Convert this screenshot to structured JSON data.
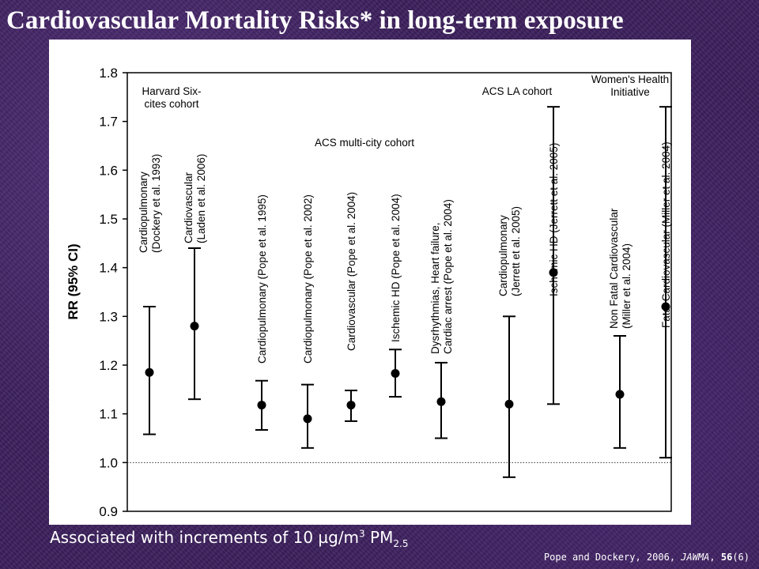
{
  "slide": {
    "title": "Cardiovascular Mortality Risks* in long-term exposure",
    "footnote": {
      "prefix": "Associated with increments of 10 µg/m",
      "sup": "3",
      "mid": " PM",
      "sub": "2.5"
    },
    "citation": {
      "authors": "Pope and Dockery, 2006, ",
      "journal": "JAWMA",
      "volume": "56",
      "issue": "(6)"
    }
  },
  "chart_data": {
    "type": "scatter",
    "ylabel": "RR (95% CI)",
    "ylim": [
      0.9,
      1.8
    ],
    "yticks": [
      "0.9",
      "1.0",
      "1.1",
      "1.2",
      "1.3",
      "1.4",
      "1.5",
      "1.6",
      "1.7",
      "1.8"
    ],
    "reference_line": 1.0,
    "grid": false,
    "group_labels": [
      {
        "lines": [
          "Harvard Six-",
          "cites cohort"
        ]
      },
      {
        "lines": [
          "ACS multi-city cohort"
        ]
      },
      {
        "lines": [
          "ACS LA cohort"
        ]
      },
      {
        "lines": [
          "Women's Health",
          "Initiative"
        ]
      }
    ],
    "points": [
      {
        "label_lines": [
          "Cardiopulmonary",
          "(Dockery et al. 1993)"
        ],
        "rr": 1.185,
        "lower": 1.058,
        "upper": 1.32
      },
      {
        "label_lines": [
          "Cardiovascular",
          "(Laden et al. 2006)"
        ],
        "rr": 1.28,
        "lower": 1.13,
        "upper": 1.44
      },
      {
        "label_lines": [
          "Cardiopulmonary (Pope et al. 1995)"
        ],
        "rr": 1.118,
        "lower": 1.067,
        "upper": 1.168
      },
      {
        "label_lines": [
          "Cardiopulmonary (Pope et al. 2002)"
        ],
        "rr": 1.09,
        "lower": 1.03,
        "upper": 1.16
      },
      {
        "label_lines": [
          "Cardiovascular (Pope et al. 2004)"
        ],
        "rr": 1.118,
        "lower": 1.085,
        "upper": 1.148
      },
      {
        "label_lines": [
          "Ischemic HD (Pope et al. 2004)"
        ],
        "rr": 1.183,
        "lower": 1.135,
        "upper": 1.232
      },
      {
        "label_lines": [
          "Dysrhythmias, Heart failure,",
          "Cardiac arrest (Pope et al. 2004)"
        ],
        "rr": 1.125,
        "lower": 1.05,
        "upper": 1.205
      },
      {
        "label_lines": [
          "Cardiopulmonary",
          "(Jerrett et al. 2005)"
        ],
        "rr": 1.12,
        "lower": 0.97,
        "upper": 1.3
      },
      {
        "label_lines": [
          "Ischemic HD (Jerrett et al. 2005)"
        ],
        "rr": 1.39,
        "lower": 1.12,
        "upper": 1.73
      },
      {
        "label_lines": [
          "Non Fatal Cardiovascular",
          "(Miller et al. 2004)"
        ],
        "rr": 1.14,
        "lower": 1.03,
        "upper": 1.26
      },
      {
        "label_lines": [
          "Fatal Cardiovascular (Miller et al. 2004)"
        ],
        "rr": 1.32,
        "lower": 1.01,
        "upper": 1.73
      }
    ]
  }
}
